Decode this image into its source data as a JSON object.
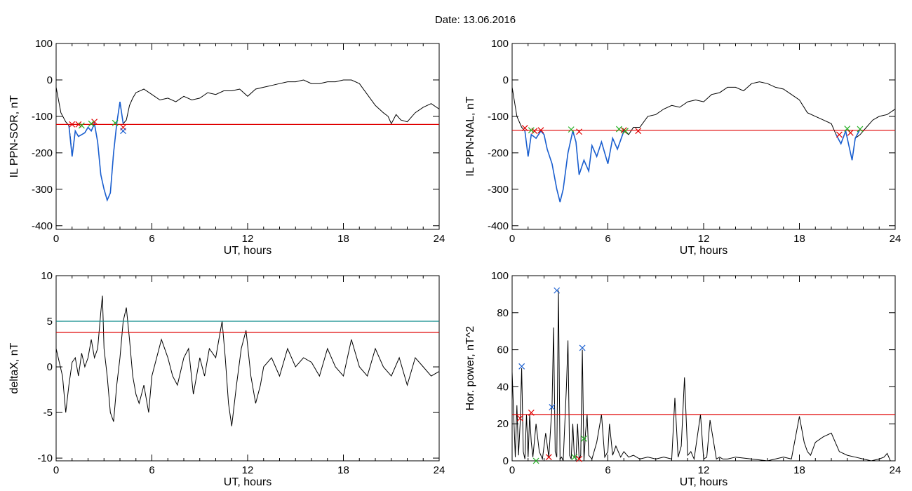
{
  "title": "Date:  13.06.2016",
  "colors": {
    "trace": "#000000",
    "event": "#1a5fd0",
    "threshold": "#e00000",
    "threshold2": "#0a8a8a",
    "green": "#22b022"
  },
  "chart_data": [
    {
      "type": "line",
      "panel": "top-left",
      "xlabel": "UT, hours",
      "ylabel": "IL PPN-SOR, nT",
      "xlim": [
        0,
        24
      ],
      "ylim": [
        -410,
        100
      ],
      "xticks": [
        0,
        6,
        12,
        18,
        24
      ],
      "yticks": [
        100,
        0,
        -100,
        -200,
        -300,
        -400
      ],
      "series": [
        {
          "role": "trace",
          "x": [
            0,
            0.3,
            0.6,
            0.8,
            0.9,
            1.0,
            1.2,
            1.4,
            1.6,
            1.8,
            2.0,
            2.2,
            2.4,
            2.6,
            2.8,
            3.0,
            3.2,
            3.4,
            3.6,
            3.8,
            4.0,
            4.2,
            4.4,
            4.6,
            4.8,
            5.0,
            5.5,
            6.0,
            6.5,
            7.0,
            7.5,
            8.0,
            8.5,
            9.0,
            9.5,
            10.0,
            10.5,
            11.0,
            11.5,
            12.0,
            12.5,
            13.0,
            13.5,
            14.0,
            14.5,
            15.0,
            15.5,
            16.0,
            16.5,
            17.0,
            17.5,
            18.0,
            18.5,
            19.0,
            19.5,
            20.0,
            20.5,
            20.8,
            21.0,
            21.3,
            21.6,
            22.0,
            22.5,
            23.0,
            23.5,
            24.0
          ],
          "y": [
            -20,
            -90,
            -115,
            -125,
            -160,
            -210,
            -140,
            -155,
            -150,
            -145,
            -130,
            -140,
            -120,
            -170,
            -260,
            -300,
            -330,
            -310,
            -200,
            -120,
            -60,
            -120,
            -110,
            -70,
            -50,
            -35,
            -25,
            -40,
            -55,
            -50,
            -60,
            -45,
            -55,
            -50,
            -35,
            -40,
            -30,
            -30,
            -25,
            -45,
            -25,
            -20,
            -15,
            -10,
            -5,
            -5,
            0,
            -10,
            -10,
            -5,
            -5,
            0,
            0,
            -10,
            -40,
            -70,
            -90,
            -100,
            -120,
            -95,
            -110,
            -115,
            -90,
            -75,
            -65,
            -80
          ]
        },
        {
          "role": "event",
          "x": [
            0.8,
            1.0,
            1.2,
            1.4,
            1.6,
            1.8,
            2.0,
            2.2,
            2.4,
            2.6,
            2.8,
            3.0,
            3.2,
            3.4,
            3.6,
            3.8,
            4.0,
            4.2
          ],
          "y": [
            -125,
            -210,
            -140,
            -155,
            -150,
            -145,
            -130,
            -140,
            -120,
            -170,
            -260,
            -300,
            -330,
            -310,
            -200,
            -120,
            -60,
            -120
          ]
        },
        {
          "role": "threshold",
          "value": -122
        }
      ],
      "markers_red": [
        [
          1.0,
          -122
        ],
        [
          1.4,
          -122
        ],
        [
          2.4,
          -115
        ],
        [
          4.2,
          -130
        ]
      ],
      "markers_green": [
        [
          1.6,
          -125
        ],
        [
          2.2,
          -120
        ],
        [
          3.7,
          -118
        ]
      ],
      "markers_blue": [
        [
          4.2,
          -140
        ]
      ]
    },
    {
      "type": "line",
      "panel": "top-right",
      "xlabel": "UT, hours",
      "ylabel": "IL PPN-NAL, nT",
      "xlim": [
        0,
        24
      ],
      "ylim": [
        -410,
        100
      ],
      "xticks": [
        0,
        6,
        12,
        18,
        24
      ],
      "yticks": [
        100,
        0,
        -100,
        -200,
        -300,
        -400
      ],
      "series": [
        {
          "role": "trace",
          "x": [
            0,
            0.3,
            0.6,
            0.8,
            1.0,
            1.2,
            1.5,
            1.8,
            2.0,
            2.2,
            2.5,
            2.8,
            3.0,
            3.2,
            3.5,
            3.8,
            4.0,
            4.2,
            4.5,
            4.8,
            5.0,
            5.3,
            5.6,
            6.0,
            6.3,
            6.6,
            7.0,
            7.3,
            7.6,
            8.0,
            8.5,
            9.0,
            9.5,
            10.0,
            10.5,
            11.0,
            11.5,
            12.0,
            12.5,
            13.0,
            13.5,
            14.0,
            14.5,
            15.0,
            15.5,
            16.0,
            16.5,
            17.0,
            17.5,
            18.0,
            18.5,
            19.0,
            19.5,
            20.0,
            20.3,
            20.6,
            20.9,
            21.1,
            21.3,
            21.5,
            21.8,
            22.2,
            22.6,
            23.0,
            23.5,
            24.0
          ],
          "y": [
            -20,
            -100,
            -130,
            -140,
            -210,
            -150,
            -160,
            -140,
            -150,
            -190,
            -230,
            -300,
            -335,
            -300,
            -200,
            -140,
            -170,
            -260,
            -220,
            -250,
            -180,
            -210,
            -170,
            -230,
            -160,
            -190,
            -140,
            -150,
            -130,
            -130,
            -100,
            -95,
            -80,
            -70,
            -75,
            -60,
            -55,
            -60,
            -40,
            -35,
            -20,
            -20,
            -30,
            -10,
            -5,
            -10,
            -20,
            -25,
            -40,
            -55,
            -90,
            -100,
            -110,
            -120,
            -150,
            -175,
            -140,
            -180,
            -220,
            -160,
            -150,
            -130,
            -110,
            -100,
            -95,
            -80
          ]
        },
        {
          "role": "event",
          "x": [
            0.8,
            1.0,
            1.2,
            1.5,
            1.8,
            2.0,
            2.2,
            2.5,
            2.8,
            3.0,
            3.2,
            3.5,
            3.8,
            4.0,
            4.2,
            4.5,
            4.8,
            5.0,
            5.3,
            5.6,
            6.0,
            6.3,
            6.6,
            7.0
          ],
          "y": [
            -140,
            -210,
            -150,
            -160,
            -140,
            -150,
            -190,
            -230,
            -300,
            -335,
            -300,
            -200,
            -140,
            -170,
            -260,
            -220,
            -250,
            -180,
            -210,
            -170,
            -230,
            -160,
            -190,
            -140
          ]
        },
        {
          "role": "event",
          "x": [
            20.3,
            20.6,
            20.9,
            21.1,
            21.3,
            21.5,
            21.8
          ],
          "y": [
            -150,
            -175,
            -140,
            -180,
            -220,
            -160,
            -135
          ]
        },
        {
          "role": "threshold",
          "value": -138
        }
      ],
      "markers_red": [
        [
          0.8,
          -132
        ],
        [
          1.4,
          -140
        ],
        [
          1.8,
          -138
        ],
        [
          4.2,
          -142
        ],
        [
          7.0,
          -138
        ],
        [
          7.9,
          -140
        ],
        [
          20.5,
          -150
        ],
        [
          21.2,
          -145
        ]
      ],
      "markers_green": [
        [
          1.2,
          -138
        ],
        [
          3.7,
          -136
        ],
        [
          6.7,
          -135
        ],
        [
          7.1,
          -140
        ],
        [
          21.0,
          -134
        ],
        [
          21.8,
          -135
        ]
      ],
      "markers_blue": []
    },
    {
      "type": "line",
      "panel": "bottom-left",
      "xlabel": "UT, hours",
      "ylabel": "deltaX, nT",
      "xlim": [
        0,
        24
      ],
      "ylim": [
        -10.3,
        10
      ],
      "xticks": [
        0,
        6,
        12,
        18,
        24
      ],
      "yticks": [
        10,
        5,
        0,
        -5,
        -10
      ],
      "series": [
        {
          "role": "trace",
          "x": [
            0,
            0.2,
            0.4,
            0.6,
            0.8,
            1.0,
            1.2,
            1.4,
            1.6,
            1.8,
            2.0,
            2.2,
            2.4,
            2.6,
            2.8,
            2.9,
            3.0,
            3.2,
            3.4,
            3.6,
            3.8,
            4.0,
            4.2,
            4.4,
            4.6,
            4.8,
            5.0,
            5.2,
            5.5,
            5.8,
            6.0,
            6.3,
            6.6,
            7.0,
            7.3,
            7.6,
            8.0,
            8.3,
            8.6,
            9.0,
            9.3,
            9.6,
            10.0,
            10.2,
            10.4,
            10.6,
            10.8,
            11.0,
            11.3,
            11.6,
            11.9,
            12.2,
            12.5,
            12.8,
            13.0,
            13.5,
            14.0,
            14.5,
            15.0,
            15.5,
            16.0,
            16.5,
            17.0,
            17.5,
            18.0,
            18.5,
            19.0,
            19.5,
            20.0,
            20.5,
            21.0,
            21.5,
            22.0,
            22.5,
            23.0,
            23.5,
            24.0
          ],
          "y": [
            2,
            0.5,
            -1,
            -5,
            -2,
            0.5,
            1,
            -1,
            1.5,
            0,
            1,
            3,
            1,
            2,
            6,
            7.8,
            2,
            -1,
            -5,
            -6,
            -2,
            1,
            5,
            6.5,
            3,
            -1,
            -3,
            -4,
            -2,
            -5,
            -1,
            1,
            3,
            1,
            -1,
            -2,
            1,
            2,
            -3,
            1,
            -1,
            2,
            1,
            3,
            5,
            1,
            -4,
            -6.5,
            -2,
            2,
            4,
            -1,
            -4,
            -2,
            0,
            1,
            -1,
            2,
            0,
            1,
            0.5,
            -1,
            2,
            0,
            -1,
            3,
            0,
            -1,
            2,
            0,
            -1,
            1,
            -2,
            1,
            0,
            -1,
            -0.5
          ]
        },
        {
          "role": "threshold2",
          "value": 5
        },
        {
          "role": "threshold",
          "value": 3.8
        }
      ]
    },
    {
      "type": "line",
      "panel": "bottom-right",
      "xlabel": "UT, hours",
      "ylabel": "Hor. power, nT^2",
      "xlim": [
        0,
        24
      ],
      "ylim": [
        0,
        100
      ],
      "xticks": [
        0,
        6,
        12,
        18,
        24
      ],
      "yticks": [
        100,
        80,
        60,
        40,
        20,
        0
      ],
      "series": [
        {
          "role": "trace",
          "x": [
            0,
            0.2,
            0.3,
            0.4,
            0.5,
            0.6,
            0.7,
            0.8,
            0.9,
            1.0,
            1.1,
            1.2,
            1.3,
            1.5,
            1.7,
            1.9,
            2.1,
            2.3,
            2.5,
            2.6,
            2.7,
            2.8,
            2.9,
            3.0,
            3.1,
            3.2,
            3.4,
            3.5,
            3.6,
            3.7,
            3.8,
            3.9,
            4.0,
            4.1,
            4.2,
            4.3,
            4.4,
            4.5,
            4.6,
            4.7,
            4.8,
            5.0,
            5.3,
            5.6,
            5.8,
            6.0,
            6.1,
            6.3,
            6.5,
            6.8,
            7.0,
            7.3,
            7.6,
            8.0,
            8.5,
            9.0,
            9.5,
            10.0,
            10.2,
            10.4,
            10.6,
            10.8,
            11.0,
            11.2,
            11.4,
            11.8,
            12.0,
            12.2,
            12.4,
            12.8,
            13.0,
            13.2,
            13.5,
            14.0,
            15.0,
            16.0,
            17.0,
            17.5,
            18.0,
            18.3,
            18.5,
            18.7,
            19.0,
            19.5,
            20.0,
            20.5,
            21.0,
            21.5,
            22.0,
            22.5,
            23.0,
            23.3,
            23.5,
            23.7,
            24.0
          ],
          "y": [
            48,
            2,
            30,
            3,
            20,
            50,
            5,
            1,
            25,
            2,
            25,
            10,
            2,
            20,
            5,
            1,
            15,
            2,
            30,
            72,
            5,
            2,
            92,
            1,
            2,
            0,
            40,
            65,
            3,
            1,
            20,
            2,
            1,
            20,
            1,
            3,
            60,
            0,
            15,
            25,
            3,
            1,
            10,
            25,
            2,
            5,
            20,
            3,
            8,
            2,
            5,
            2,
            3,
            1,
            2,
            1,
            2,
            1,
            34,
            2,
            8,
            45,
            3,
            5,
            1,
            25,
            1,
            2,
            22,
            1,
            2,
            1,
            1,
            2,
            1,
            0,
            2,
            1,
            24,
            10,
            5,
            3,
            10,
            13,
            15,
            5,
            3,
            2,
            1,
            0,
            1,
            2,
            4,
            0,
            0
          ]
        },
        {
          "role": "threshold",
          "value": 25
        }
      ],
      "markers_blue": [
        [
          0.6,
          51
        ],
        [
          2.5,
          29
        ],
        [
          2.8,
          92
        ],
        [
          4.4,
          61
        ]
      ],
      "markers_red": [
        [
          0.5,
          23
        ],
        [
          1.2,
          26
        ],
        [
          2.3,
          2
        ],
        [
          4.2,
          1
        ]
      ],
      "markers_green": [
        [
          1.5,
          0
        ],
        [
          3.9,
          2
        ],
        [
          4.5,
          12
        ]
      ]
    }
  ]
}
